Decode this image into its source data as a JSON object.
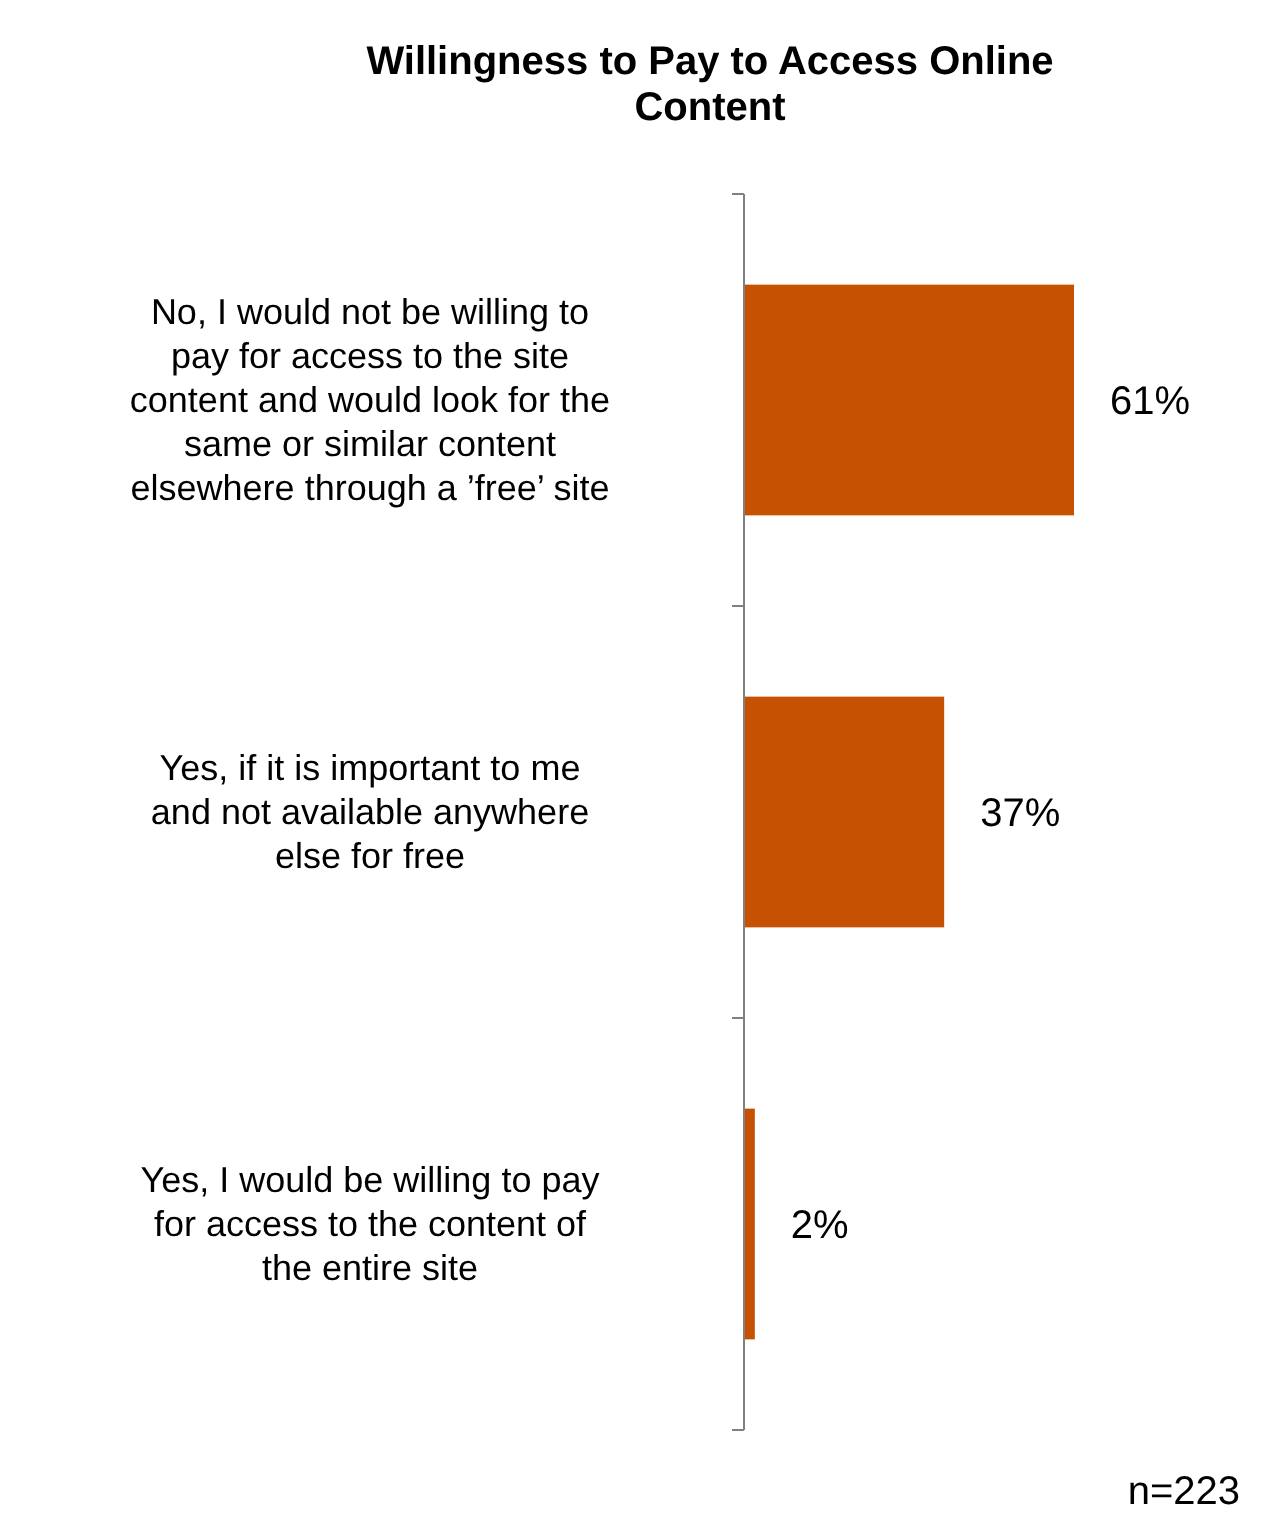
{
  "chart_data": {
    "type": "bar",
    "orientation": "horizontal",
    "title": "Willingness to Pay to Access Online Content",
    "categories": [
      "No, I would not be willing to pay for access to the site content and would look for the same or similar content elsewhere through a ’free’ site",
      "Yes, if it is important to me and not available anywhere else for free",
      "Yes, I would be willing to pay for access to the content of the entire site"
    ],
    "values": [
      61,
      37,
      2
    ],
    "value_labels": [
      "61%",
      "37%",
      "2%"
    ],
    "color": "#c65102",
    "annotations": [
      "n=223"
    ]
  }
}
